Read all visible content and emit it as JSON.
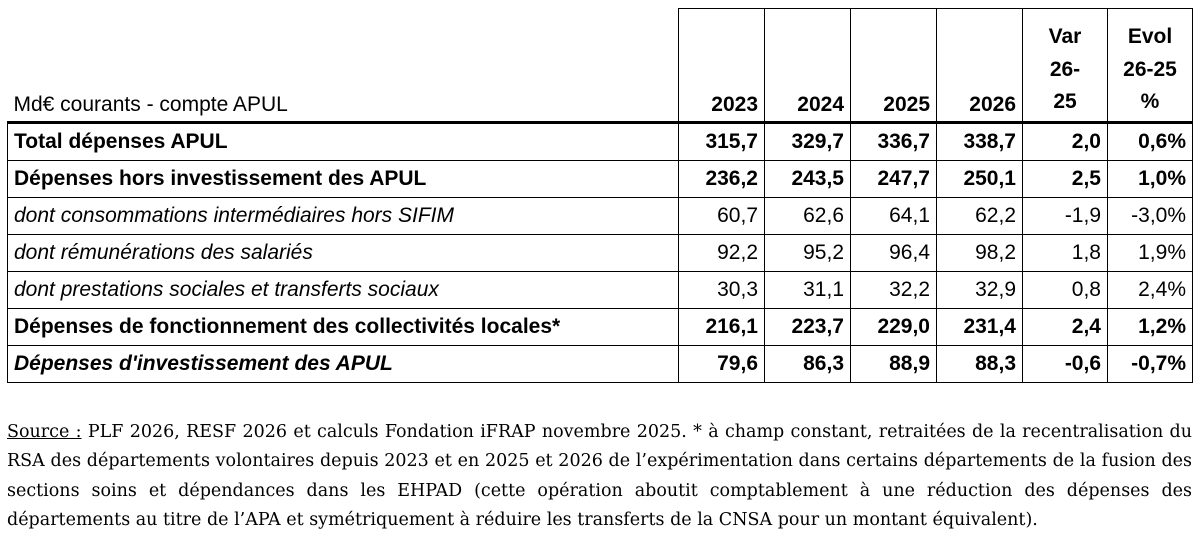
{
  "table": {
    "header": {
      "label": "Md€ courants - compte APUL",
      "years": [
        "2023",
        "2024",
        "2025",
        "2026"
      ],
      "var_lines": [
        "Var",
        "26-",
        "25"
      ],
      "evol_lines": [
        "Evol",
        "26-25",
        "%"
      ]
    },
    "rows": [
      {
        "style": "bold",
        "label": "Total dépenses APUL",
        "values": [
          "315,7",
          "329,7",
          "336,7",
          "338,7",
          "2,0",
          "0,6%"
        ]
      },
      {
        "style": "bold",
        "label": "Dépenses hors investissement des APUL",
        "values": [
          "236,2",
          "243,5",
          "247,7",
          "250,1",
          "2,5",
          "1,0%"
        ]
      },
      {
        "style": "italic",
        "label": "dont consommations intermédiaires hors SIFIM",
        "values": [
          "60,7",
          "62,6",
          "64,1",
          "62,2",
          "-1,9",
          "-3,0%"
        ]
      },
      {
        "style": "italic",
        "label": "dont rémunérations des salariés",
        "values": [
          "92,2",
          "95,2",
          "96,4",
          "98,2",
          "1,8",
          "1,9%"
        ]
      },
      {
        "style": "italic",
        "label": "dont prestations sociales et transferts sociaux",
        "values": [
          "30,3",
          "31,1",
          "32,2",
          "32,9",
          "0,8",
          "2,4%"
        ]
      },
      {
        "style": "bold",
        "label": "Dépenses de fonctionnement des collectivités locales*",
        "values": [
          "216,1",
          "223,7",
          "229,0",
          "231,4",
          "2,4",
          "1,2%"
        ]
      },
      {
        "style": "bolditalic",
        "label": "Dépenses d'investissement des APUL",
        "values": [
          "79,6",
          "86,3",
          "88,9",
          "88,3",
          "-0,6",
          "-0,7%"
        ]
      }
    ]
  },
  "note": {
    "source_label": "Source :",
    "text": " PLF 2026, RESF 2026 et calculs Fondation iFRAP novembre 2025. * à champ constant, retraitées de la recentralisation du RSA des départements volontaires depuis 2023 et en 2025 et 2026 de l’expérimentation dans certains départements de la fusion des sections soins et dépendances dans les EHPAD (cette opération aboutit comptablement à une réduction des dépenses des départements au titre de l’APA et symétriquement à réduire les transferts de la CNSA pour un montant équivalent)."
  }
}
